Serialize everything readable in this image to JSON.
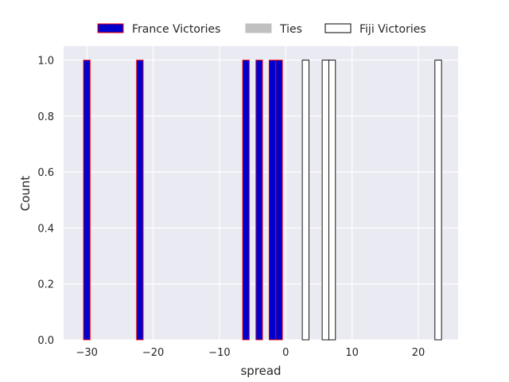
{
  "chart_data": {
    "type": "bar",
    "xlabel": "spread",
    "ylabel": "Count",
    "xlim": [
      -33.5,
      26.0
    ],
    "ylim": [
      0,
      1.05
    ],
    "bin_width": 1.0,
    "xticks": [
      -30,
      -20,
      -10,
      0,
      10,
      20
    ],
    "xtick_labels": [
      "−30",
      "−20",
      "−10",
      "0",
      "10",
      "20"
    ],
    "yticks": [
      0.0,
      0.2,
      0.4,
      0.6,
      0.8,
      1.0
    ],
    "ytick_labels": [
      "0.0",
      "0.2",
      "0.4",
      "0.6",
      "0.8",
      "1.0"
    ],
    "grid": true,
    "legend_position": "top-center",
    "series": [
      {
        "name": "France Victories",
        "fill": "#0000cc",
        "edge": "#ff0000",
        "bins": [
          {
            "x": -30,
            "count": 1
          },
          {
            "x": -22,
            "count": 1
          },
          {
            "x": -6,
            "count": 1
          },
          {
            "x": -4,
            "count": 1
          },
          {
            "x": -2,
            "count": 1
          },
          {
            "x": -1,
            "count": 1
          }
        ]
      },
      {
        "name": "Ties",
        "fill": "#c0c0c0",
        "edge": "#c0c0c0",
        "bins": []
      },
      {
        "name": "Fiji Victories",
        "fill": "#ffffff",
        "edge": "#000000",
        "bins": [
          {
            "x": 3,
            "count": 1
          },
          {
            "x": 6,
            "count": 1
          },
          {
            "x": 7,
            "count": 1
          },
          {
            "x": 23,
            "count": 1
          }
        ]
      }
    ]
  },
  "colors": {
    "plot_background": "#eaeaf2",
    "grid": "#ffffff",
    "text": "#262626"
  }
}
